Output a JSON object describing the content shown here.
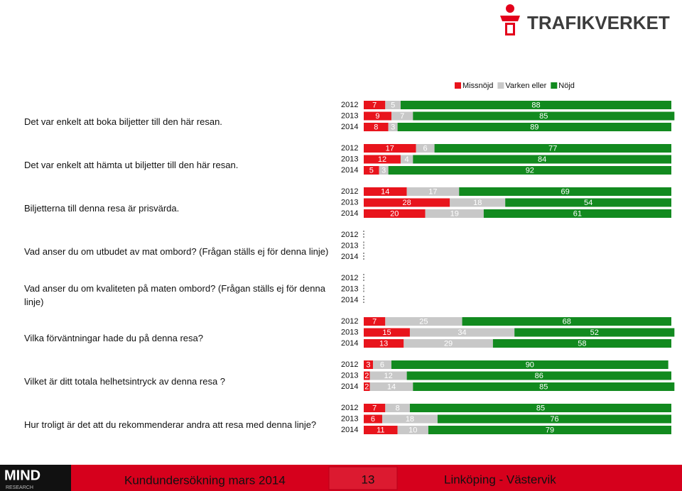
{
  "logo": "TRAFIKVERKET",
  "chart_data": {
    "type": "bar",
    "stacked": true,
    "orientation": "horizontal",
    "series": [
      {
        "name": "Missnöjd",
        "color": "#e8141c"
      },
      {
        "name": "Varken eller",
        "color": "#c8c8c8"
      },
      {
        "name": "Nöjd",
        "color": "#128a1f"
      }
    ],
    "groups": [
      {
        "label": "Det var enkelt att boka biljetter till den här resan.",
        "categories": [
          "2012",
          "2013",
          "2014"
        ],
        "series": [
          [
            7,
            9,
            8
          ],
          [
            5,
            7,
            3
          ],
          [
            88,
            85,
            89
          ]
        ]
      },
      {
        "label": "Det var enkelt att hämta ut biljetter till den här resan.",
        "categories": [
          "2012",
          "2013",
          "2014"
        ],
        "series": [
          [
            17,
            12,
            5
          ],
          [
            6,
            4,
            3
          ],
          [
            77,
            84,
            92
          ]
        ]
      },
      {
        "label": "Biljetterna till denna resa är prisvärda.",
        "categories": [
          "2012",
          "2013",
          "2014"
        ],
        "series": [
          [
            14,
            28,
            20
          ],
          [
            17,
            18,
            19
          ],
          [
            69,
            54,
            61
          ]
        ]
      },
      {
        "label": "Vad anser du om utbudet av mat ombord? (Frågan ställs ej för denna linje)",
        "categories": [
          "2012",
          "2013",
          "2014"
        ],
        "series": [
          [
            null,
            null,
            null
          ],
          [
            null,
            null,
            null
          ],
          [
            null,
            null,
            null
          ]
        ]
      },
      {
        "label": "Vad anser du om kvaliteten på maten ombord? (Frågan ställs ej för denna linje)",
        "categories": [
          "2012",
          "2013",
          "2014"
        ],
        "series": [
          [
            null,
            null,
            null
          ],
          [
            null,
            null,
            null
          ],
          [
            null,
            null,
            null
          ]
        ]
      },
      {
        "label": "Vilka förväntningar hade du på denna resa?",
        "categories": [
          "2012",
          "2013",
          "2014"
        ],
        "series": [
          [
            7,
            15,
            13
          ],
          [
            25,
            34,
            29
          ],
          [
            68,
            52,
            58
          ]
        ]
      },
      {
        "label": "Vilket är ditt totala helhetsintryck av denna resa ?",
        "categories": [
          "2012",
          "2013",
          "2014"
        ],
        "series": [
          [
            3,
            2,
            2
          ],
          [
            6,
            12,
            14
          ],
          [
            90,
            86,
            85
          ]
        ]
      },
      {
        "label": "Hur troligt är det att du rekommenderar andra att resa med denna linje?",
        "categories": [
          "2012",
          "2013",
          "2014"
        ],
        "series": [
          [
            7,
            6,
            11
          ],
          [
            8,
            18,
            10
          ],
          [
            85,
            76,
            79
          ]
        ]
      }
    ]
  },
  "footer": {
    "brand": "MIND",
    "brand_sub": "RESEARCH",
    "left": "Kundundersökning mars 2014",
    "page": "13",
    "right": "Linköping - Västervik"
  }
}
